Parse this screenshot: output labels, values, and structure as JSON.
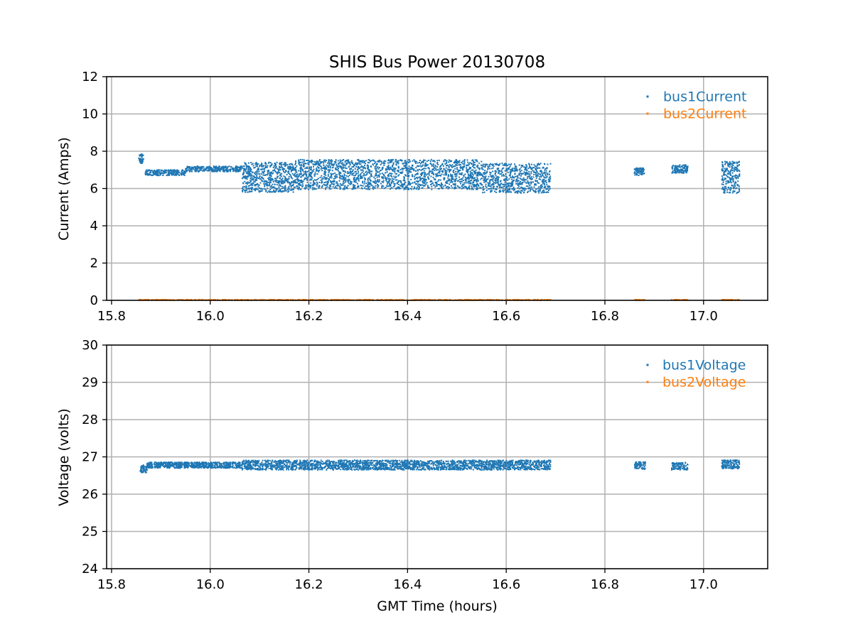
{
  "figure": {
    "title": "SHIS Bus Power 20130708"
  },
  "chart_data": [
    {
      "type": "scatter",
      "title": "SHIS Bus Power 20130708",
      "xlabel": "",
      "ylabel": "Current (Amps)",
      "xlim": [
        15.79,
        17.13
      ],
      "ylim": [
        0,
        12
      ],
      "x_ticks": [
        15.8,
        16.0,
        16.2,
        16.4,
        16.6,
        16.8,
        17.0
      ],
      "x_tick_labels": [
        "15.8",
        "16.0",
        "16.2",
        "16.4",
        "16.6",
        "16.8",
        "17.0"
      ],
      "y_ticks": [
        0,
        2,
        4,
        6,
        8,
        10,
        12
      ],
      "y_tick_labels": [
        "0",
        "2",
        "4",
        "6",
        "8",
        "10",
        "12"
      ],
      "grid": true,
      "legend_position": "top-right",
      "series": [
        {
          "name": "bus1Current",
          "color": "#1f77b4",
          "segments": [
            {
              "x": [
                15.855,
                15.865
              ],
              "y_center": 7.6,
              "y_spread": 0.25,
              "density": 40
            },
            {
              "x": [
                15.868,
                15.95
              ],
              "y_center": 6.85,
              "y_spread": 0.15,
              "density": 220
            },
            {
              "x": [
                15.95,
                16.065
              ],
              "y_center": 7.05,
              "y_spread": 0.15,
              "density": 300
            },
            {
              "x": [
                16.065,
                16.17
              ],
              "y_center": 6.6,
              "y_spread": 0.8,
              "density": 600
            },
            {
              "x": [
                16.17,
                16.55
              ],
              "y_center": 6.75,
              "y_spread": 0.8,
              "density": 1900
            },
            {
              "x": [
                16.55,
                16.69
              ],
              "y_center": 6.55,
              "y_spread": 0.8,
              "density": 700
            },
            {
              "x": [
                16.86,
                16.88
              ],
              "y_center": 6.9,
              "y_spread": 0.2,
              "density": 70
            },
            {
              "x": [
                16.935,
                16.968
              ],
              "y_center": 7.05,
              "y_spread": 0.22,
              "density": 110
            },
            {
              "x": [
                17.037,
                17.073
              ],
              "y_center": 6.6,
              "y_spread": 0.85,
              "density": 220
            }
          ]
        },
        {
          "name": "bus2Current",
          "color": "#ff7f0e",
          "segments": [
            {
              "x": [
                15.855,
                16.69
              ],
              "y_center": 0.02,
              "y_spread": 0.02,
              "density": 700
            },
            {
              "x": [
                16.86,
                16.88
              ],
              "y_center": 0.02,
              "y_spread": 0.02,
              "density": 30
            },
            {
              "x": [
                16.935,
                16.968
              ],
              "y_center": 0.02,
              "y_spread": 0.02,
              "density": 40
            },
            {
              "x": [
                17.037,
                17.073
              ],
              "y_center": 0.02,
              "y_spread": 0.02,
              "density": 50
            }
          ]
        }
      ]
    },
    {
      "type": "scatter",
      "title": "",
      "xlabel": "GMT Time (hours)",
      "ylabel": "Voltage (volts)",
      "xlim": [
        15.79,
        17.13
      ],
      "ylim": [
        24,
        30
      ],
      "x_ticks": [
        15.8,
        16.0,
        16.2,
        16.4,
        16.6,
        16.8,
        17.0
      ],
      "x_tick_labels": [
        "15.8",
        "16.0",
        "16.2",
        "16.4",
        "16.6",
        "16.8",
        "17.0"
      ],
      "y_ticks": [
        24,
        25,
        26,
        27,
        28,
        29,
        30
      ],
      "y_tick_labels": [
        "24",
        "25",
        "26",
        "27",
        "28",
        "29",
        "30"
      ],
      "grid": true,
      "legend_position": "top-right",
      "series": [
        {
          "name": "bus1Voltage",
          "color": "#1f77b4",
          "segments": [
            {
              "x": [
                15.858,
                15.872
              ],
              "y_center": 26.68,
              "y_spread": 0.1,
              "density": 50
            },
            {
              "x": [
                15.872,
                16.065
              ],
              "y_center": 26.78,
              "y_spread": 0.08,
              "density": 700
            },
            {
              "x": [
                16.065,
                16.69
              ],
              "y_center": 26.78,
              "y_spread": 0.13,
              "density": 2200
            },
            {
              "x": [
                16.86,
                16.882
              ],
              "y_center": 26.77,
              "y_spread": 0.1,
              "density": 70
            },
            {
              "x": [
                16.935,
                16.968
              ],
              "y_center": 26.75,
              "y_spread": 0.1,
              "density": 110
            },
            {
              "x": [
                17.037,
                17.073
              ],
              "y_center": 26.8,
              "y_spread": 0.12,
              "density": 150
            }
          ]
        },
        {
          "name": "bus2Voltage",
          "color": "#ff7f0e",
          "segments": []
        }
      ]
    }
  ]
}
